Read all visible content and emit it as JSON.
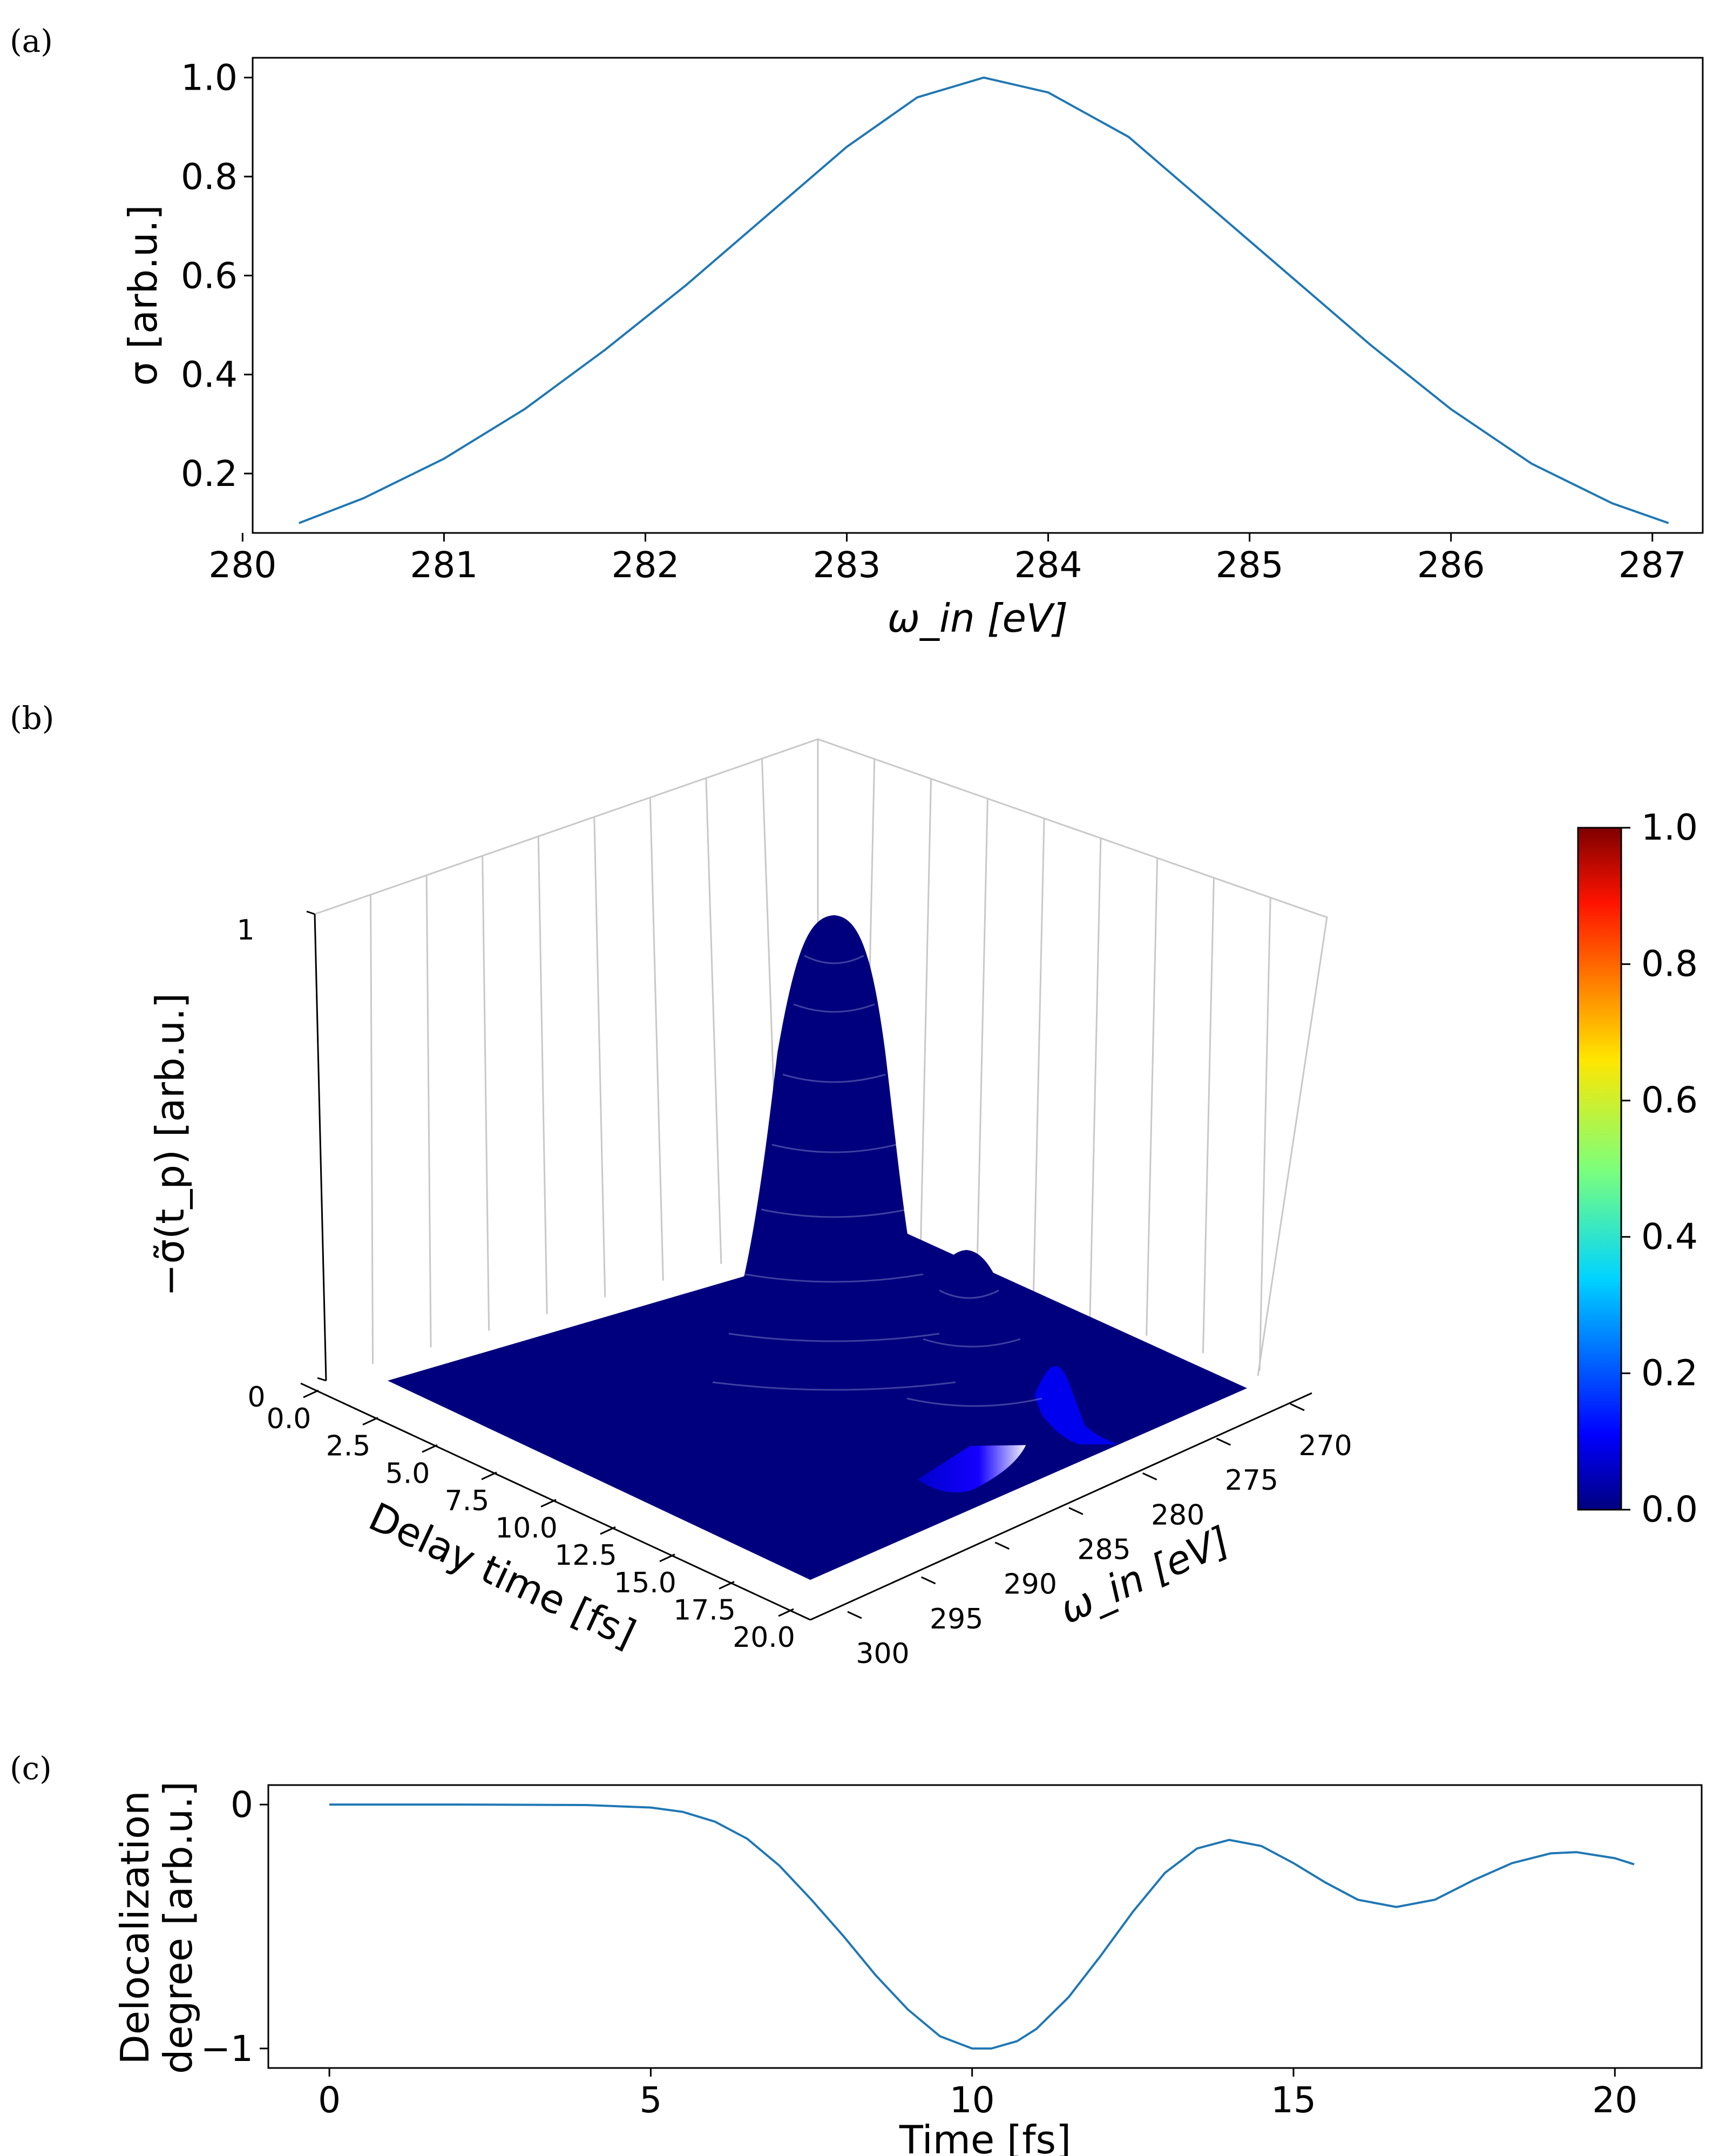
{
  "panels": {
    "a": {
      "label": "(a)"
    },
    "b": {
      "label": "(b)"
    },
    "c": {
      "label": "(c)"
    }
  },
  "colors": {
    "line": "#1f77b4",
    "grid": "#c8c8c8",
    "floor": "#00007f"
  },
  "chart_data": [
    {
      "id": "a",
      "type": "line",
      "title": "",
      "xlabel": "ω_in [eV]",
      "ylabel": "σ [arb.u.]",
      "xlim": [
        280.05,
        287.25
      ],
      "ylim": [
        0.08,
        1.04
      ],
      "xticks": [
        280,
        281,
        282,
        283,
        284,
        285,
        286,
        287
      ],
      "yticks": [
        0.2,
        0.4,
        0.6,
        0.8,
        1.0
      ],
      "xtick_labels": [
        "280",
        "281",
        "282",
        "283",
        "284",
        "285",
        "286",
        "287"
      ],
      "ytick_labels": [
        "0.2",
        "0.4",
        "0.6",
        "0.8",
        "1.0"
      ],
      "series": [
        {
          "name": "σ",
          "x": [
            280.28,
            280.6,
            281.0,
            281.4,
            281.8,
            282.2,
            282.6,
            283.0,
            283.35,
            283.68,
            284.0,
            284.4,
            284.8,
            285.2,
            285.6,
            286.0,
            286.4,
            286.8,
            287.08
          ],
          "values": [
            0.1,
            0.15,
            0.23,
            0.33,
            0.45,
            0.58,
            0.72,
            0.86,
            0.96,
            1.0,
            0.97,
            0.88,
            0.74,
            0.6,
            0.46,
            0.33,
            0.22,
            0.14,
            0.1
          ]
        }
      ]
    },
    {
      "id": "b",
      "type": "surface",
      "title": "",
      "xlabel": "Delay time [fs]",
      "ylabel": "ω_in [eV]",
      "zlabel": "−σ̃(t_p) [arb.u.]",
      "xticks": [
        "0.0",
        "2.5",
        "5.0",
        "7.5",
        "10.0",
        "12.5",
        "15.0",
        "17.5",
        "20.0"
      ],
      "yticks": [
        "270",
        "275",
        "280",
        "285",
        "290",
        "295",
        "300"
      ],
      "zticks": [
        "0",
        "1"
      ],
      "xlim": [
        0,
        21
      ],
      "ylim": [
        267,
        302
      ],
      "zlim": [
        0,
        1
      ],
      "peaks": [
        {
          "delay_fs": 10.2,
          "omega_ev": 283.7,
          "value": 1.0
        },
        {
          "delay_fs": 14.5,
          "omega_ev": 283.7,
          "value": 0.38
        },
        {
          "delay_fs": 17.5,
          "omega_ev": 283.7,
          "value": 0.13
        }
      ],
      "colorbar": {
        "colormap": "jet",
        "ticks": [
          "0.0",
          "0.2",
          "0.4",
          "0.6",
          "0.8",
          "1.0"
        ],
        "range": [
          0,
          1
        ]
      }
    },
    {
      "id": "c",
      "type": "line",
      "title": "",
      "xlabel": "Time [fs]",
      "ylabel_line1": "Delocalization",
      "ylabel_line2": "degree [arb.u.]",
      "xlim": [
        -0.95,
        21.35
      ],
      "ylim": [
        -1.08,
        0.08
      ],
      "xticks": [
        0,
        5,
        10,
        15,
        20
      ],
      "yticks": [
        0,
        -1
      ],
      "xtick_labels": [
        "0",
        "5",
        "10",
        "15",
        "20"
      ],
      "ytick_labels": [
        "0",
        "−1"
      ],
      "series": [
        {
          "name": "delocalization",
          "x": [
            0,
            2,
            4,
            5,
            5.5,
            6,
            6.5,
            7,
            7.5,
            8,
            8.5,
            9,
            9.5,
            10,
            10.3,
            10.7,
            11,
            11.5,
            12,
            12.5,
            13,
            13.5,
            14,
            14.5,
            15,
            15.5,
            16,
            16.6,
            17.2,
            17.8,
            18.4,
            19,
            19.4,
            20,
            20.3
          ],
          "values": [
            0,
            0,
            -0.002,
            -0.012,
            -0.03,
            -0.07,
            -0.14,
            -0.25,
            -0.39,
            -0.54,
            -0.7,
            -0.84,
            -0.95,
            -1.0,
            -1.0,
            -0.97,
            -0.92,
            -0.79,
            -0.62,
            -0.44,
            -0.28,
            -0.18,
            -0.145,
            -0.17,
            -0.24,
            -0.32,
            -0.39,
            -0.42,
            -0.39,
            -0.31,
            -0.24,
            -0.2,
            -0.195,
            -0.22,
            -0.245
          ]
        }
      ]
    }
  ]
}
